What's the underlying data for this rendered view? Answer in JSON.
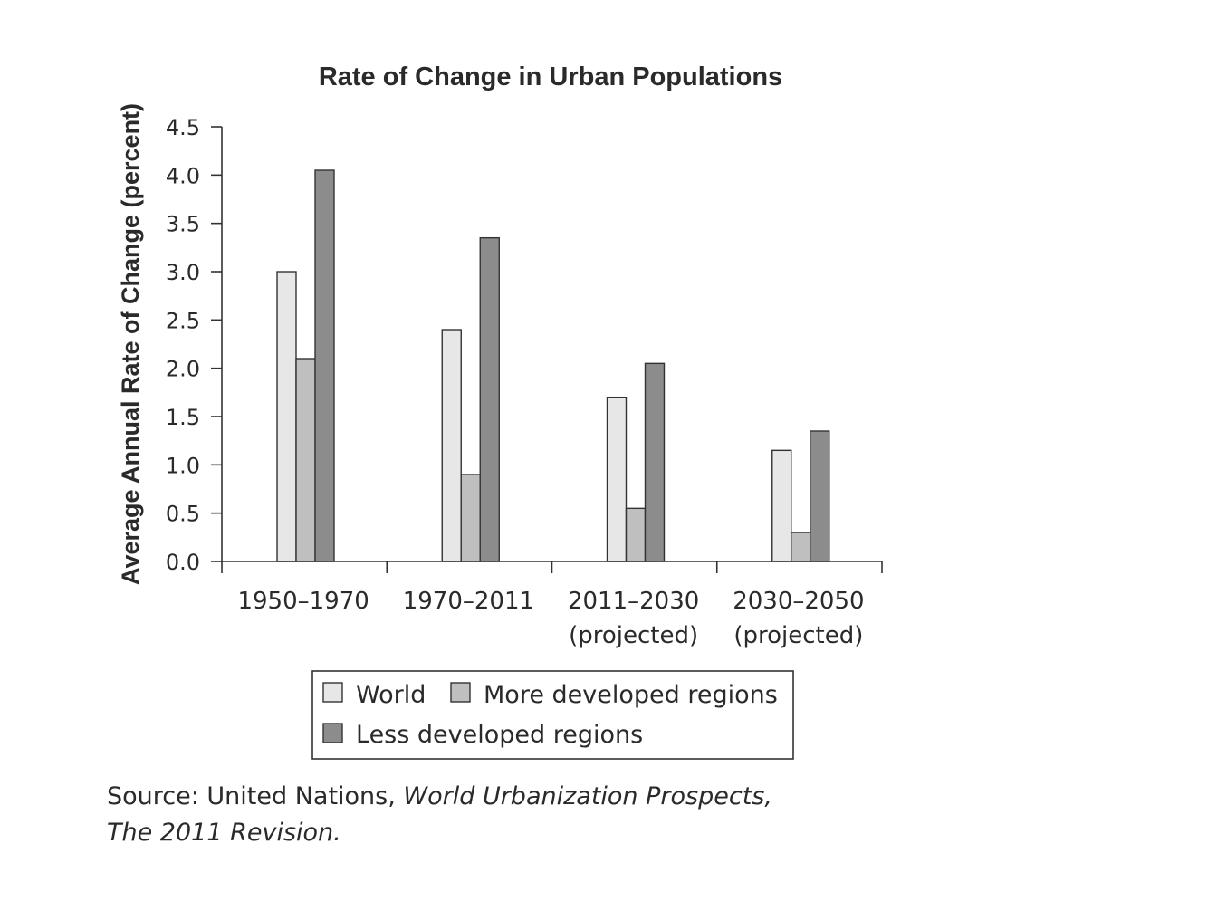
{
  "colors": {
    "world": "#e7e7e7",
    "more_developed": "#bfbfbf",
    "less_developed": "#8c8c8c"
  },
  "chart_data": {
    "type": "bar",
    "title": "Rate of Change in Urban Populations",
    "ylabel": "Average Annual Rate of Change (percent)",
    "xlabel": "",
    "ylim": [
      0,
      4.5
    ],
    "yticks": [
      "0.0",
      "0.5",
      "1.0",
      "1.5",
      "2.0",
      "2.5",
      "3.0",
      "3.5",
      "4.0",
      "4.5"
    ],
    "categories": [
      {
        "line1": "1950–1970",
        "line2": ""
      },
      {
        "line1": "1970–2011",
        "line2": ""
      },
      {
        "line1": "2011–2030",
        "line2": "(projected)"
      },
      {
        "line1": "2030–2050",
        "line2": "(projected)"
      }
    ],
    "series": [
      {
        "name": "World",
        "values": [
          3.0,
          2.4,
          1.7,
          1.15
        ]
      },
      {
        "name": "More developed regions",
        "values": [
          2.1,
          0.9,
          0.55,
          0.3
        ]
      },
      {
        "name": "Less developed regions",
        "values": [
          4.05,
          3.35,
          2.05,
          1.35
        ]
      }
    ],
    "grid": false,
    "legend": "bottom"
  },
  "source": {
    "prefix": "Source: United Nations, ",
    "italic_line1": "World Urbanization Prospects,",
    "italic_line2": "The 2011 Revision."
  }
}
